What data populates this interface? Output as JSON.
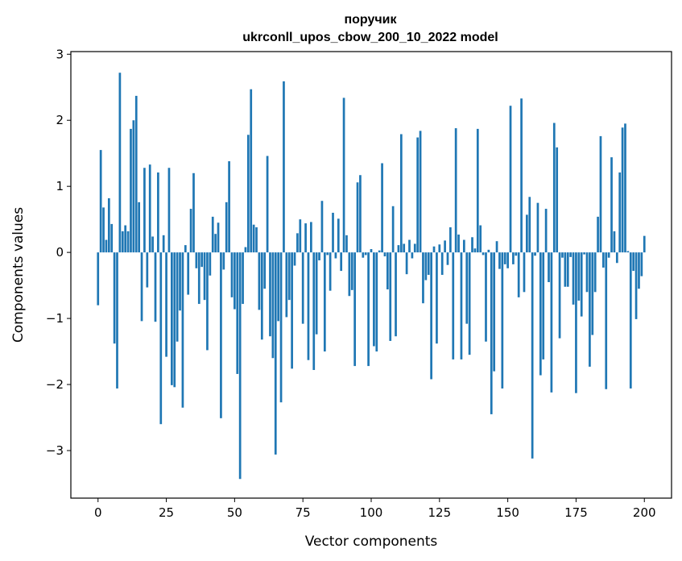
{
  "chart_data": {
    "type": "bar",
    "title_line1": "поручик",
    "title_line2": "ukrconll_upos_cbow_200_10_2022 model",
    "xlabel": "Vector components",
    "ylabel": "Components values",
    "xlim": [
      -9.95,
      209.95
    ],
    "ylim": [
      -3.72,
      3.04
    ],
    "xticks": [
      0,
      25,
      50,
      75,
      100,
      125,
      150,
      175,
      200
    ],
    "xtick_labels": [
      "0",
      "25",
      "50",
      "75",
      "100",
      "125",
      "150",
      "175",
      "200"
    ],
    "yticks": [
      -3,
      -2,
      -1,
      0,
      1,
      2,
      3
    ],
    "ytick_labels": [
      "−3",
      "−2",
      "−1",
      "0",
      "1",
      "2",
      "3"
    ],
    "bar_color": "#1f77b4",
    "grid": false,
    "values": [
      -0.8,
      1.55,
      0.68,
      0.19,
      0.82,
      0.43,
      -1.38,
      -2.06,
      2.72,
      0.32,
      0.41,
      0.32,
      1.87,
      2.0,
      2.37,
      0.76,
      -1.04,
      1.28,
      -0.53,
      1.33,
      0.24,
      -1.05,
      1.21,
      -2.6,
      0.26,
      -1.58,
      1.28,
      -2.01,
      -2.04,
      -1.35,
      -0.88,
      -2.35,
      0.11,
      -0.64,
      0.66,
      1.2,
      -0.24,
      -0.78,
      -0.22,
      -0.72,
      -1.48,
      -0.35,
      0.54,
      0.28,
      0.45,
      -2.51,
      -0.26,
      0.76,
      1.38,
      -0.68,
      -0.86,
      -1.84,
      -3.43,
      -0.78,
      0.08,
      1.78,
      2.47,
      0.42,
      0.38,
      -0.87,
      -1.32,
      -0.55,
      1.46,
      -1.27,
      -1.6,
      -3.06,
      -1.04,
      -2.27,
      2.59,
      -0.98,
      -0.72,
      -1.76,
      -0.2,
      0.29,
      0.5,
      -1.08,
      0.44,
      -1.63,
      0.46,
      -1.78,
      -1.24,
      -0.12,
      0.78,
      -1.5,
      -0.04,
      -0.58,
      0.6,
      -0.09,
      0.51,
      -0.28,
      2.34,
      0.26,
      -0.66,
      -0.57,
      -1.72,
      1.06,
      1.17,
      -0.08,
      -0.04,
      -1.72,
      0.05,
      -1.42,
      -1.5,
      0.03,
      1.35,
      -0.06,
      -0.56,
      -1.34,
      0.7,
      -1.27,
      0.11,
      1.79,
      0.13,
      -0.33,
      0.19,
      -0.09,
      0.13,
      1.74,
      1.84,
      -0.77,
      -0.42,
      -0.34,
      -1.92,
      0.09,
      -1.38,
      0.12,
      -0.34,
      0.18,
      -0.19,
      0.38,
      -1.62,
      1.88,
      0.27,
      -1.62,
      0.19,
      -1.08,
      -1.55,
      0.23,
      0.06,
      1.87,
      0.41,
      -0.04,
      -1.35,
      0.04,
      -2.45,
      -1.8,
      0.17,
      -0.25,
      -2.06,
      -0.18,
      -0.24,
      2.22,
      -0.18,
      -0.05,
      -0.68,
      2.33,
      -0.6,
      0.57,
      0.84,
      -3.12,
      -0.05,
      0.75,
      -1.86,
      -1.62,
      0.66,
      -0.45,
      -2.12,
      1.96,
      1.59,
      -1.3,
      -0.08,
      -0.52,
      -0.52,
      -0.07,
      -0.79,
      -2.13,
      -0.73,
      -0.97,
      -0.03,
      -0.6,
      -1.73,
      -1.25,
      -0.6,
      0.54,
      1.76,
      -0.23,
      -2.07,
      -0.08,
      1.44,
      0.32,
      -0.16,
      1.21,
      1.89,
      1.95,
      0.02,
      -2.06,
      -0.28,
      -1.01,
      -0.55,
      -0.36,
      0.25
    ]
  }
}
